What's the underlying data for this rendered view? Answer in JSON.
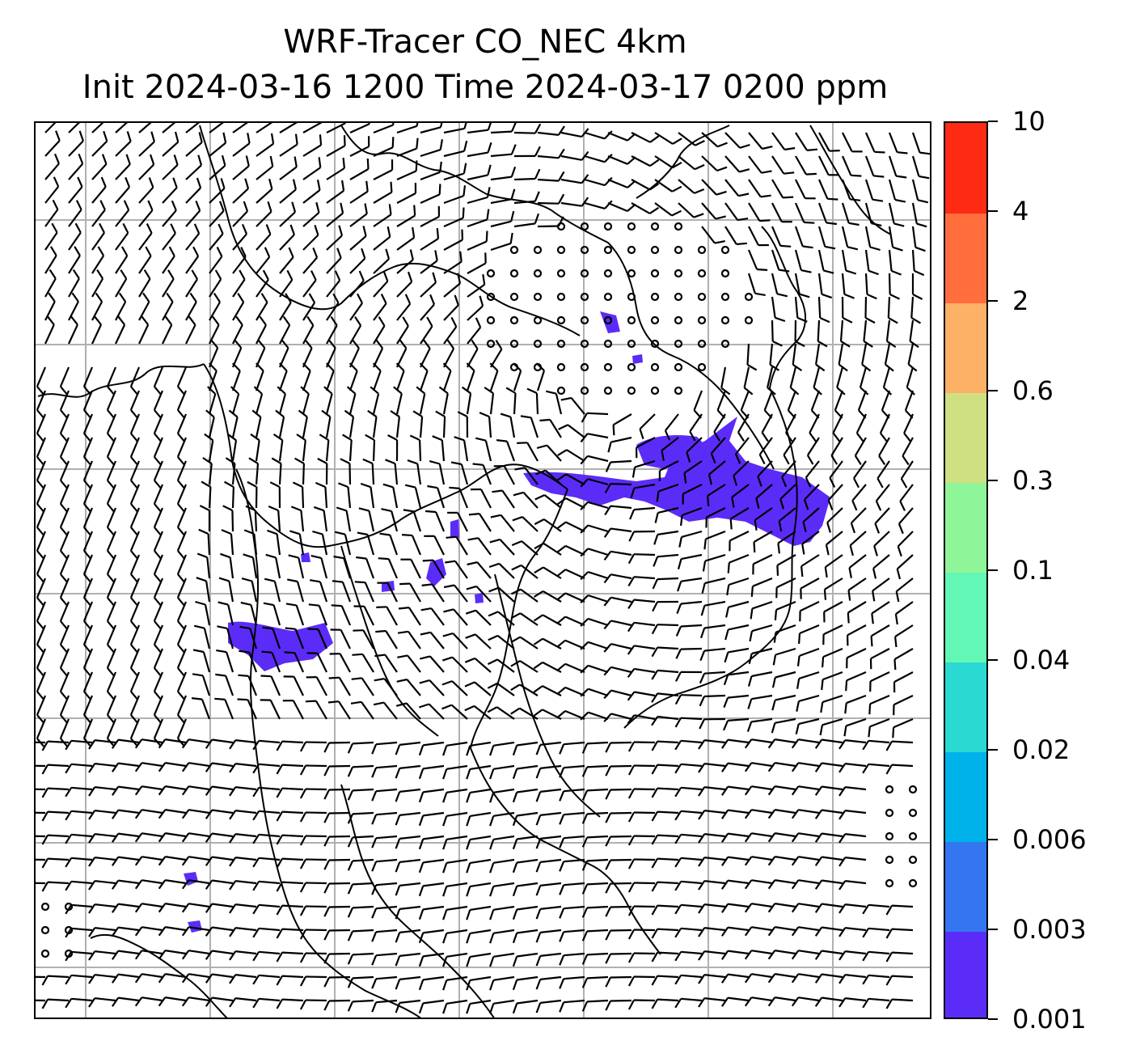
{
  "title": {
    "line1": "WRF-Tracer CO_NEC 4km",
    "line2": "Init 2024-03-16 1200 Time 2024-03-17 0200 ppm"
  },
  "colorbar": {
    "levels": [
      "0.001",
      "0.003",
      "0.006",
      "0.02",
      "0.04",
      "0.1",
      "0.3",
      "0.6",
      "2",
      "4",
      "10"
    ],
    "colors": [
      "#5b2cf8",
      "#3376f0",
      "#00b2ea",
      "#2ad9d2",
      "#62f7b4",
      "#8ef598",
      "#cfe083",
      "#fdb167",
      "#ff6e3c",
      "#ff2a13"
    ]
  },
  "map": {
    "plume_color": "#5b2cf8",
    "gridline_color": "#b0b0b0",
    "coastline_color": "#000000",
    "barb_color": "#000000"
  }
}
